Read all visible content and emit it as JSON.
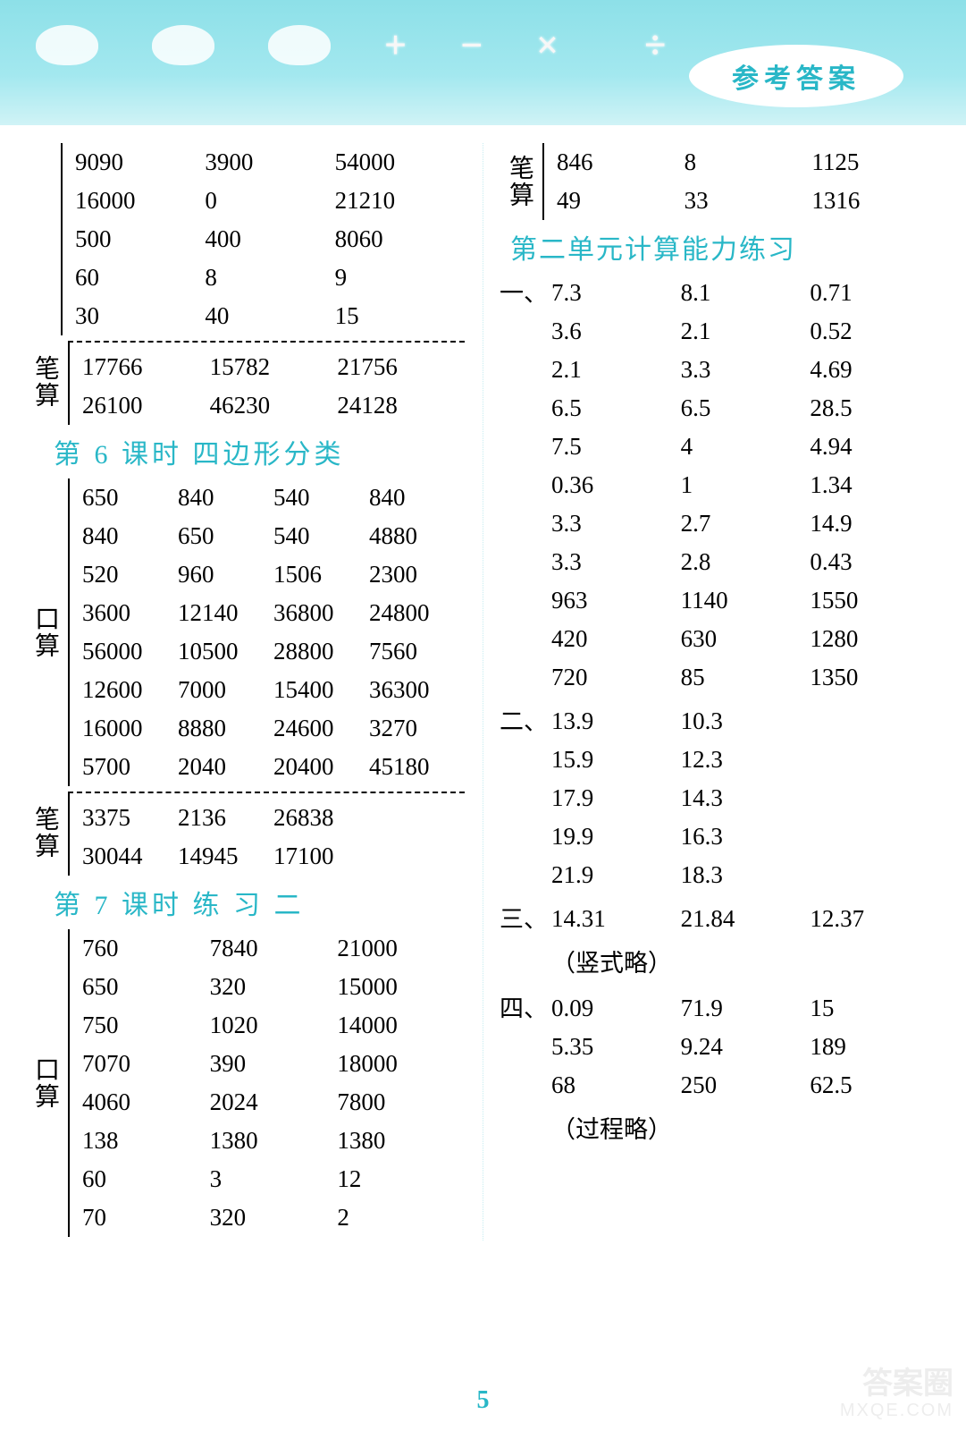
{
  "header": {
    "badge": "参考答案"
  },
  "page_number": "5",
  "watermark": {
    "line1": "答案圈",
    "line2": "MXQE.COM"
  },
  "left": {
    "top": {
      "mental_rows": [
        [
          "9090",
          "3900",
          "54000"
        ],
        [
          "16000",
          "0",
          "21210"
        ],
        [
          "500",
          "400",
          "8060"
        ],
        [
          "60",
          "8",
          "9"
        ],
        [
          "30",
          "40",
          "15"
        ]
      ],
      "written_label": "笔算",
      "written_rows": [
        [
          "17766",
          "15782",
          "21756"
        ],
        [
          "26100",
          "46230",
          "24128"
        ]
      ]
    },
    "sec6": {
      "title": "第 6 课时  四边形分类",
      "mental_label": "口算",
      "mental_rows": [
        [
          "650",
          "840",
          "540",
          "840"
        ],
        [
          "840",
          "650",
          "540",
          "4880"
        ],
        [
          "520",
          "960",
          "1506",
          "2300"
        ],
        [
          "3600",
          "12140",
          "36800",
          "24800"
        ],
        [
          "56000",
          "10500",
          "28800",
          "7560"
        ],
        [
          "12600",
          "7000",
          "15400",
          "36300"
        ],
        [
          "16000",
          "8880",
          "24600",
          "3270"
        ],
        [
          "5700",
          "2040",
          "20400",
          "45180"
        ]
      ],
      "written_label": "笔算",
      "written_rows": [
        [
          "3375",
          "2136",
          "26838",
          ""
        ],
        [
          "30044",
          "14945",
          "17100",
          ""
        ]
      ]
    },
    "sec7": {
      "title": "第 7 课时  练  习  二",
      "mental_label": "口算",
      "mental_rows": [
        [
          "760",
          "7840",
          "21000"
        ],
        [
          "650",
          "320",
          "15000"
        ],
        [
          "750",
          "1020",
          "14000"
        ],
        [
          "7070",
          "390",
          "18000"
        ],
        [
          "4060",
          "2024",
          "7800"
        ],
        [
          "138",
          "1380",
          "1380"
        ],
        [
          "60",
          "3",
          "12"
        ],
        [
          "70",
          "320",
          "2"
        ]
      ]
    }
  },
  "right": {
    "written": {
      "label": "笔算",
      "rows": [
        [
          "846",
          "8",
          "1125"
        ],
        [
          "49",
          "33",
          "1316"
        ]
      ]
    },
    "unit2_title": "第二单元计算能力练习",
    "p1": {
      "label": "一、",
      "rows": [
        [
          "7.3",
          "8.1",
          "0.71"
        ],
        [
          "3.6",
          "2.1",
          "0.52"
        ],
        [
          "2.1",
          "3.3",
          "4.69"
        ],
        [
          "6.5",
          "6.5",
          "28.5"
        ],
        [
          "7.5",
          "4",
          "4.94"
        ],
        [
          "0.36",
          "1",
          "1.34"
        ],
        [
          "3.3",
          "2.7",
          "14.9"
        ],
        [
          "3.3",
          "2.8",
          "0.43"
        ],
        [
          "963",
          "1140",
          "1550"
        ],
        [
          "420",
          "630",
          "1280"
        ],
        [
          "720",
          "85",
          "1350"
        ]
      ]
    },
    "p2": {
      "label": "二、",
      "rows": [
        [
          "13.9",
          "10.3",
          ""
        ],
        [
          "15.9",
          "12.3",
          ""
        ],
        [
          "17.9",
          "14.3",
          ""
        ],
        [
          "19.9",
          "16.3",
          ""
        ],
        [
          "21.9",
          "18.3",
          ""
        ]
      ]
    },
    "p3": {
      "label": "三、",
      "rows": [
        [
          "14.31",
          "21.84",
          "12.37"
        ]
      ],
      "note": "（竖式略）"
    },
    "p4": {
      "label": "四、",
      "rows": [
        [
          "0.09",
          "71.9",
          "15"
        ],
        [
          "5.35",
          "9.24",
          "189"
        ],
        [
          "68",
          "250",
          "62.5"
        ]
      ],
      "note": "（过程略）"
    }
  }
}
